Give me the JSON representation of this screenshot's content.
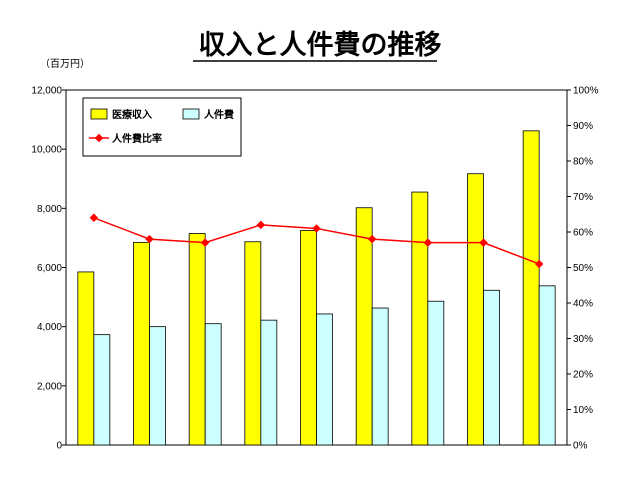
{
  "title": "収入と人件費の推移",
  "left_unit": "（百万円）",
  "colors": {
    "revenue": "#ffff00",
    "personnel": "#ccffff",
    "ratio": "#ff0000",
    "outline": "#000000"
  },
  "chart_data": {
    "type": "bar",
    "title": "収入と人件費の推移",
    "categories": [
      "",
      "",
      "",
      "",
      "",
      "",
      "",
      "",
      ""
    ],
    "series": [
      {
        "name": "医療収入",
        "type": "bar",
        "axis": "left",
        "values": [
          5850,
          6850,
          7150,
          6870,
          7250,
          8020,
          8550,
          9170,
          10620
        ]
      },
      {
        "name": "人件費",
        "type": "bar",
        "axis": "left",
        "values": [
          3730,
          4000,
          4100,
          4220,
          4430,
          4630,
          4860,
          5230,
          5380
        ]
      },
      {
        "name": "人件費比率",
        "type": "line",
        "axis": "right",
        "unit": "%",
        "values": [
          64,
          58,
          57,
          62,
          61,
          58,
          57,
          57,
          51
        ]
      }
    ],
    "ylim": [
      0,
      12000
    ],
    "y2lim": [
      0,
      100
    ],
    "yticks": [
      "0",
      "2,000",
      "4,000",
      "6,000",
      "8,000",
      "10,000",
      "12,000"
    ],
    "y2ticks": [
      "0%",
      "10%",
      "20%",
      "30%",
      "40%",
      "50%",
      "60%",
      "70%",
      "80%",
      "90%",
      "100%"
    ],
    "grid": false,
    "legend": "top-left"
  }
}
